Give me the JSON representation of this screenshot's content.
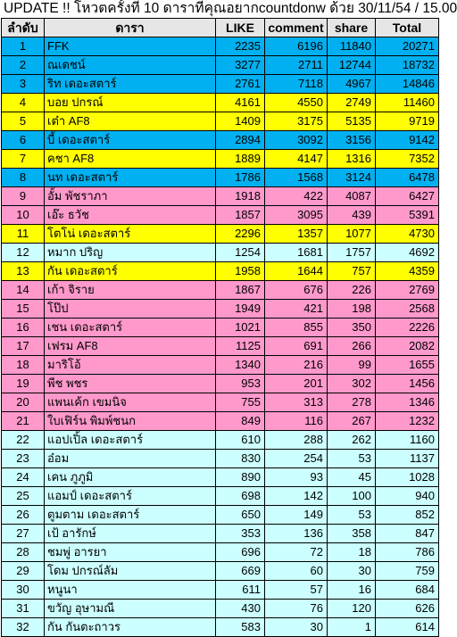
{
  "title": "UPDATE !! โหวตครั้งที่ 10 ดาราที่คุณอยากcountdonw ด้วย 30/11/54 / 15.00",
  "colors": {
    "cyan": "#00b0f0",
    "yellow": "#ffff00",
    "pink": "#ff99cc",
    "lightcyan": "#ccffff",
    "header": "#e6e6e6"
  },
  "headers": [
    "ลำดับ",
    "ดารา",
    "LIKE",
    "comment",
    "share",
    "Total"
  ],
  "rows": [
    {
      "rank": "1",
      "name": "FFK",
      "like": "2235",
      "comment": "6196",
      "share": "11840",
      "total": "20271",
      "color": "cyan"
    },
    {
      "rank": "2",
      "name": "ณเดชน์",
      "like": "3277",
      "comment": "2711",
      "share": "12744",
      "total": "18732",
      "color": "cyan"
    },
    {
      "rank": "3",
      "name": "ริท เดอะสตาร์",
      "like": "2761",
      "comment": "7118",
      "share": "4967",
      "total": "14846",
      "color": "cyan"
    },
    {
      "rank": "4",
      "name": "บอย ปกรณ์",
      "like": "4161",
      "comment": "4550",
      "share": "2749",
      "total": "11460",
      "color": "yellow"
    },
    {
      "rank": "5",
      "name": "เต๋า AF8",
      "like": "1409",
      "comment": "3175",
      "share": "5135",
      "total": "9719",
      "color": "yellow"
    },
    {
      "rank": "6",
      "name": "บี้ เดอะสตาร์",
      "like": "2894",
      "comment": "3092",
      "share": "3156",
      "total": "9142",
      "color": "cyan"
    },
    {
      "rank": "7",
      "name": "คชา AF8",
      "like": "1889",
      "comment": "4147",
      "share": "1316",
      "total": "7352",
      "color": "yellow"
    },
    {
      "rank": "8",
      "name": "นท เดอะสตาร์",
      "like": "1786",
      "comment": "1568",
      "share": "3124",
      "total": "6478",
      "color": "cyan"
    },
    {
      "rank": "9",
      "name": "อั้ม พัชราภา",
      "like": "1918",
      "comment": "422",
      "share": "4087",
      "total": "6427",
      "color": "pink"
    },
    {
      "rank": "10",
      "name": "เอ๊ะ ธวัช",
      "like": "1857",
      "comment": "3095",
      "share": "439",
      "total": "5391",
      "color": "pink"
    },
    {
      "rank": "11",
      "name": "โตโน่ เดอะสตาร์",
      "like": "2296",
      "comment": "1357",
      "share": "1077",
      "total": "4730",
      "color": "yellow"
    },
    {
      "rank": "12",
      "name": "หมาก ปริญ",
      "like": "1254",
      "comment": "1681",
      "share": "1757",
      "total": "4692",
      "color": "lightcyan"
    },
    {
      "rank": "13",
      "name": "กัน เดอะสตาร์",
      "like": "1958",
      "comment": "1644",
      "share": "757",
      "total": "4359",
      "color": "yellow"
    },
    {
      "rank": "14",
      "name": "เก้า จิราย",
      "like": "1867",
      "comment": "676",
      "share": "226",
      "total": "2769",
      "color": "pink"
    },
    {
      "rank": "15",
      "name": "โป๊ป",
      "like": "1949",
      "comment": "421",
      "share": "198",
      "total": "2568",
      "color": "pink"
    },
    {
      "rank": "16",
      "name": "เชน เดอะสตาร์",
      "like": "1021",
      "comment": "855",
      "share": "350",
      "total": "2226",
      "color": "pink"
    },
    {
      "rank": "17",
      "name": "เฟรม AF8",
      "like": "1125",
      "comment": "691",
      "share": "266",
      "total": "2082",
      "color": "pink"
    },
    {
      "rank": "18",
      "name": "มาริโอ้",
      "like": "1340",
      "comment": "216",
      "share": "99",
      "total": "1655",
      "color": "pink"
    },
    {
      "rank": "19",
      "name": "พีช พชร",
      "like": "953",
      "comment": "201",
      "share": "302",
      "total": "1456",
      "color": "pink"
    },
    {
      "rank": "20",
      "name": "แพนเค้ก เขมนิจ",
      "like": "755",
      "comment": "313",
      "share": "278",
      "total": "1346",
      "color": "pink"
    },
    {
      "rank": "21",
      "name": "ใบเฟิร์น พิมพ์ชนก",
      "like": "849",
      "comment": "116",
      "share": "267",
      "total": "1232",
      "color": "pink"
    },
    {
      "rank": "22",
      "name": "แอปเปิ้ล เดอะสตาร์",
      "like": "610",
      "comment": "288",
      "share": "262",
      "total": "1160",
      "color": "lightcyan"
    },
    {
      "rank": "23",
      "name": "อ๋อม",
      "like": "830",
      "comment": "254",
      "share": "53",
      "total": "1137",
      "color": "lightcyan"
    },
    {
      "rank": "24",
      "name": "เคน ภูภูมิ",
      "like": "890",
      "comment": "93",
      "share": "45",
      "total": "1028",
      "color": "lightcyan"
    },
    {
      "rank": "25",
      "name": "แอมป์ เดอะสตาร์",
      "like": "698",
      "comment": "142",
      "share": "100",
      "total": "940",
      "color": "lightcyan"
    },
    {
      "rank": "26",
      "name": "ตูมตาม เดอะสตาร์",
      "like": "650",
      "comment": "149",
      "share": "53",
      "total": "852",
      "color": "lightcyan"
    },
    {
      "rank": "27",
      "name": "เป้ อารักษ์",
      "like": "353",
      "comment": "136",
      "share": "358",
      "total": "847",
      "color": "lightcyan"
    },
    {
      "rank": "28",
      "name": "ชมพู่ อารยา",
      "like": "696",
      "comment": "72",
      "share": "18",
      "total": "786",
      "color": "lightcyan"
    },
    {
      "rank": "29",
      "name": "โดม ปกรณ์ลัม",
      "like": "669",
      "comment": "60",
      "share": "30",
      "total": "759",
      "color": "lightcyan"
    },
    {
      "rank": "30",
      "name": "หนูนา",
      "like": "611",
      "comment": "57",
      "share": "16",
      "total": "684",
      "color": "lightcyan"
    },
    {
      "rank": "31",
      "name": "ขวัญ อุษามณี",
      "like": "430",
      "comment": "76",
      "share": "120",
      "total": "626",
      "color": "lightcyan"
    },
    {
      "rank": "32",
      "name": "กัน กันตะถาวร",
      "like": "583",
      "comment": "30",
      "share": "1",
      "total": "614",
      "color": "lightcyan"
    }
  ]
}
